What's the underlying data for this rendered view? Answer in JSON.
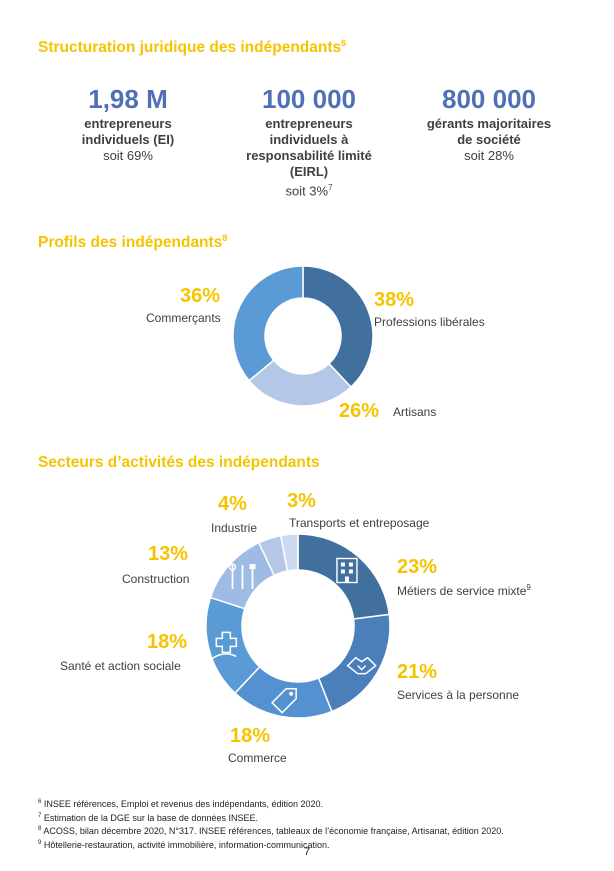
{
  "section1": {
    "title": "Structuration juridique des indépendants",
    "title_note": "6",
    "stats": [
      {
        "value": "1,98 M",
        "label_lines": [
          "entrepreneurs",
          "individuels (EI)"
        ],
        "share": "soit 69%",
        "note": ""
      },
      {
        "value": "100 000",
        "label_lines": [
          "entrepreneurs",
          "individuels à",
          "responsabilité limité",
          "(EIRL)"
        ],
        "share": "soit 3%",
        "note": "7"
      },
      {
        "value": "800 000",
        "label_lines": [
          "gérants majoritaires",
          "de société"
        ],
        "share": "soit 28%",
        "note": ""
      }
    ]
  },
  "section2": {
    "title": "Profils des indépendants",
    "title_note": "8"
  },
  "section3": {
    "title": "Secteurs d’activités des indépendants"
  },
  "chart_data": [
    {
      "type": "pie",
      "donut": true,
      "title": "Profils des indépendants",
      "categories": [
        "Professions libérales",
        "Artisans",
        "Commerçants"
      ],
      "values": [
        38,
        26,
        36
      ],
      "value_labels": [
        "38%",
        "26%",
        "36%"
      ],
      "colors": [
        "#41709f",
        "#b4c7e7",
        "#5b9bd5"
      ]
    },
    {
      "type": "pie",
      "donut": true,
      "title": "Secteurs d’activités des indépendants",
      "categories": [
        "Métiers de service mixte",
        "Services à la personne",
        "Commerce",
        "Santé et action sociale",
        "Construction",
        "Industrie",
        "Transports et entreposage"
      ],
      "category_notes": [
        "9",
        "",
        "",
        "",
        "",
        "",
        ""
      ],
      "values": [
        23,
        21,
        18,
        18,
        13,
        4,
        3
      ],
      "value_labels": [
        "23%",
        "21%",
        "18%",
        "18%",
        "13%",
        "4%",
        "3%"
      ],
      "colors": [
        "#41709f",
        "#4a7fba",
        "#5590d0",
        "#5b9bd5",
        "#9dbbe3",
        "#b4c7e7",
        "#ccdaf0"
      ],
      "icons": [
        "building-icon",
        "handshake-icon",
        "price-tag-icon",
        "care-hand-icon",
        "tools-icon",
        "",
        ""
      ]
    }
  ],
  "footnotes": [
    {
      "num": "6",
      "text": "INSEE références, Emploi et revenus des indépendants, édition 2020."
    },
    {
      "num": "7",
      "text": "Estimation de la DGE sur la base de données INSEE."
    },
    {
      "num": "8",
      "text": "ACOSS, bilan décembre 2020, N°317.  INSEE références, tableaux de l’économie française, Artisanat, édition 2020."
    },
    {
      "num": "9",
      "text": "Hôtellerie-restauration, activité immobilière, information-communication."
    }
  ],
  "page_number": "7"
}
